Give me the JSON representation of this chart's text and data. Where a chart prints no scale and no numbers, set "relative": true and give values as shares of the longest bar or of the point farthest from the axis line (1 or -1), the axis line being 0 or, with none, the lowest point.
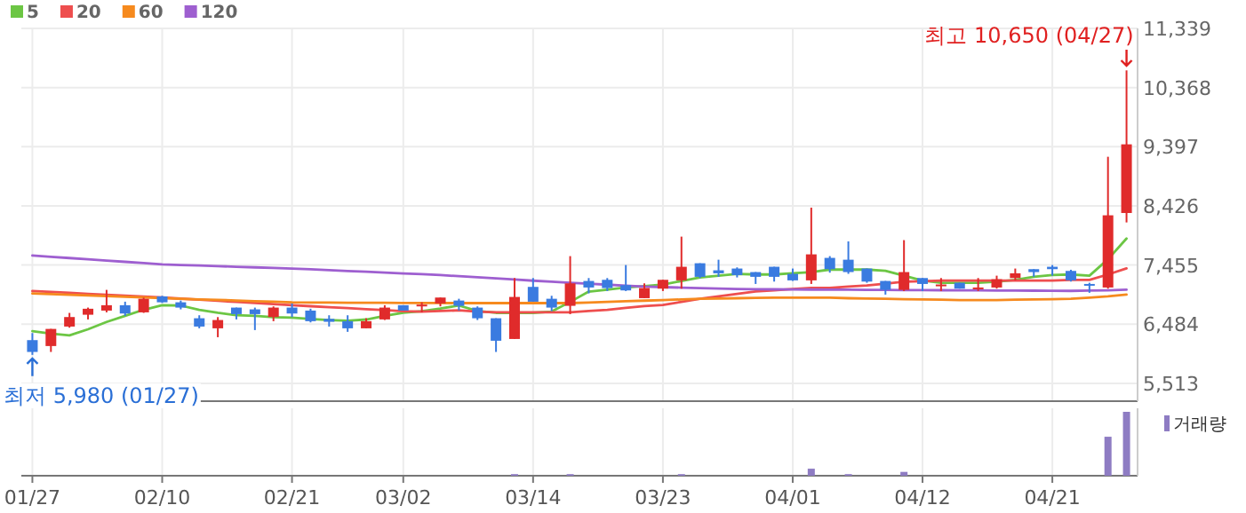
{
  "chart_data": [
    {
      "type": "candlestick",
      "categories": [
        "01/27",
        null,
        null,
        null,
        null,
        null,
        null,
        "02/10",
        null,
        null,
        null,
        null,
        null,
        null,
        "02/21",
        null,
        null,
        null,
        null,
        null,
        "03/02",
        null,
        null,
        null,
        null,
        null,
        null,
        "03/14",
        null,
        null,
        null,
        null,
        null,
        null,
        "03/23",
        null,
        null,
        null,
        null,
        null,
        null,
        "04/01",
        null,
        null,
        null,
        null,
        null,
        null,
        "04/12",
        null,
        null,
        null,
        null,
        null,
        null,
        "04/21",
        null,
        null,
        null,
        null
      ],
      "ohlc": [
        [
          6222,
          6338,
          5980,
          6028
        ],
        [
          6125,
          6406,
          6028,
          6406
        ],
        [
          6445,
          6669,
          6426,
          6601
        ],
        [
          6639,
          6756,
          6562,
          6737
        ],
        [
          6707,
          7047,
          6678,
          6795
        ],
        [
          6795,
          6853,
          6620,
          6659
        ],
        [
          6678,
          6921,
          6669,
          6901
        ],
        [
          6940,
          6950,
          6833,
          6843
        ],
        [
          6843,
          6872,
          6727,
          6756
        ],
        [
          6581,
          6630,
          6416,
          6445
        ],
        [
          6416,
          6600,
          6270,
          6552
        ],
        [
          6756,
          6756,
          6562,
          6649
        ],
        [
          6727,
          6756,
          6387,
          6649
        ],
        [
          6601,
          6776,
          6533,
          6756
        ],
        [
          6756,
          6824,
          6601,
          6659
        ],
        [
          6707,
          6737,
          6513,
          6533
        ],
        [
          6571,
          6630,
          6445,
          6523
        ],
        [
          6533,
          6630,
          6358,
          6416
        ],
        [
          6416,
          6581,
          6416,
          6533
        ],
        [
          6562,
          6795,
          6552,
          6756
        ],
        [
          6795,
          6795,
          6707,
          6707
        ],
        [
          6776,
          6843,
          6678,
          6805
        ],
        [
          6824,
          6921,
          6776,
          6921
        ],
        [
          6872,
          6901,
          6707,
          6785
        ],
        [
          6756,
          6776,
          6552,
          6581
        ],
        [
          6581,
          6581,
          6028,
          6212
        ],
        [
          6241,
          7241,
          6241,
          6931
        ],
        [
          7096,
          7241,
          6853,
          6853
        ],
        [
          6901,
          6950,
          6698,
          6756
        ],
        [
          6785,
          7601,
          6649,
          7154
        ],
        [
          7193,
          7241,
          6989,
          7086
        ],
        [
          7212,
          7241,
          7028,
          7077
        ],
        [
          7125,
          7455,
          7028,
          7038
        ],
        [
          6911,
          7154,
          6911,
          7077
        ],
        [
          7067,
          7212,
          7028,
          7212
        ],
        [
          7203,
          7921,
          7067,
          7426
        ],
        [
          7484,
          7484,
          7241,
          7261
        ],
        [
          7368,
          7542,
          7261,
          7319
        ],
        [
          7397,
          7416,
          7251,
          7290
        ],
        [
          7339,
          7339,
          7144,
          7261
        ],
        [
          7426,
          7426,
          7183,
          7261
        ],
        [
          7310,
          7397,
          7193,
          7203
        ],
        [
          7203,
          8397,
          7144,
          7630
        ],
        [
          7572,
          7601,
          7329,
          7387
        ],
        [
          7542,
          7843,
          7310,
          7339
        ],
        [
          7397,
          7397,
          7164,
          7183
        ],
        [
          7193,
          7193,
          6969,
          7047
        ],
        [
          7047,
          7863,
          7028,
          7339
        ],
        [
          7241,
          7241,
          7028,
          7144
        ],
        [
          7106,
          7241,
          7028,
          7135
        ],
        [
          7164,
          7164,
          7067,
          7067
        ],
        [
          7057,
          7241,
          7028,
          7086
        ],
        [
          7086,
          7280,
          7067,
          7222
        ],
        [
          7241,
          7397,
          7203,
          7319
        ],
        [
          7387,
          7387,
          7261,
          7339
        ],
        [
          7426,
          7455,
          7280,
          7387
        ],
        [
          7358,
          7377,
          7183,
          7203
        ],
        [
          7144,
          7164,
          6999,
          7125
        ],
        [
          7086,
          9232,
          7067,
          8271
        ],
        [
          8309,
          10650,
          8154,
          9436
        ]
      ],
      "colors": [
        "#3a7be0",
        "#e02b2b",
        "#e02b2b",
        "#e02b2b",
        "#e02b2b",
        "#3a7be0",
        "#e02b2b",
        "#3a7be0",
        "#3a7be0",
        "#3a7be0",
        "#e02b2b",
        "#3a7be0",
        "#3a7be0",
        "#e02b2b",
        "#3a7be0",
        "#3a7be0",
        "#3a7be0",
        "#3a7be0",
        "#e02b2b",
        "#e02b2b",
        "#3a7be0",
        "#e02b2b",
        "#e02b2b",
        "#3a7be0",
        "#3a7be0",
        "#3a7be0",
        "#e02b2b",
        "#3a7be0",
        "#3a7be0",
        "#e02b2b",
        "#3a7be0",
        "#3a7be0",
        "#3a7be0",
        "#e02b2b",
        "#e02b2b",
        "#e02b2b",
        "#3a7be0",
        "#3a7be0",
        "#3a7be0",
        "#3a7be0",
        "#3a7be0",
        "#3a7be0",
        "#e02b2b",
        "#3a7be0",
        "#3a7be0",
        "#3a7be0",
        "#3a7be0",
        "#e02b2b",
        "#3a7be0",
        "#e02b2b",
        "#3a7be0",
        "#e02b2b",
        "#e02b2b",
        "#e02b2b",
        "#3a7be0",
        "#3a7be0",
        "#3a7be0",
        "#3a7be0",
        "#e02b2b",
        "#e02b2b"
      ],
      "series": [
        {
          "name": "5",
          "type": "line",
          "color": "#6cc644",
          "values": [
            6368,
            6330,
            6300,
            6400,
            6520,
            6620,
            6720,
            6795,
            6790,
            6720,
            6670,
            6630,
            6620,
            6600,
            6590,
            6570,
            6552,
            6540,
            6560,
            6620,
            6670,
            6698,
            6740,
            6790,
            6700,
            6670,
            6670,
            6670,
            6690,
            6850,
            7018,
            7050,
            7086,
            7110,
            7135,
            7193,
            7250,
            7280,
            7310,
            7300,
            7300,
            7320,
            7339,
            7380,
            7380,
            7380,
            7360,
            7280,
            7200,
            7164,
            7164,
            7164,
            7180,
            7210,
            7260,
            7290,
            7300,
            7280,
            7550,
            7890
          ]
        },
        {
          "name": "20",
          "type": "line",
          "color": "#ee4e4e",
          "values": [
            7028,
            7013,
            6998,
            6982,
            6967,
            6952,
            6936,
            6921,
            6903,
            6885,
            6867,
            6849,
            6831,
            6813,
            6795,
            6779,
            6763,
            6747,
            6730,
            6714,
            6698,
            6690,
            6700,
            6710,
            6690,
            6680,
            6680,
            6680,
            6680,
            6680,
            6700,
            6720,
            6750,
            6780,
            6800,
            6850,
            6900,
            6940,
            6980,
            7020,
            7040,
            7060,
            7080,
            7080,
            7100,
            7120,
            7150,
            7180,
            7190,
            7200,
            7200,
            7200,
            7200,
            7200,
            7200,
            7200,
            7210,
            7210,
            7300,
            7400
          ]
        },
        {
          "name": "60",
          "type": "line",
          "color": "#f68a1e",
          "values": [
            6989,
            6978,
            6967,
            6956,
            6944,
            6933,
            6922,
            6911,
            6901,
            6891,
            6882,
            6872,
            6862,
            6853,
            6843,
            6840,
            6838,
            6836,
            6835,
            6834,
            6833,
            6832,
            6831,
            6830,
            6830,
            6830,
            6830,
            6830,
            6830,
            6830,
            6840,
            6850,
            6860,
            6870,
            6880,
            6890,
            6900,
            6905,
            6910,
            6915,
            6920,
            6920,
            6920,
            6920,
            6910,
            6905,
            6900,
            6895,
            6890,
            6885,
            6880,
            6880,
            6880,
            6885,
            6890,
            6895,
            6900,
            6920,
            6940,
            6970
          ]
        },
        {
          "name": "120",
          "type": "line",
          "color": "#9e5fd0",
          "values": [
            7610,
            7589,
            7569,
            7548,
            7527,
            7507,
            7486,
            7465,
            7455,
            7446,
            7436,
            7426,
            7416,
            7407,
            7397,
            7384,
            7370,
            7357,
            7344,
            7330,
            7317,
            7304,
            7290,
            7272,
            7253,
            7235,
            7217,
            7198,
            7180,
            7164,
            7148,
            7132,
            7116,
            7100,
            7092,
            7084,
            7076,
            7068,
            7060,
            7058,
            7056,
            7054,
            7052,
            7050,
            7049,
            7047,
            7046,
            7044,
            7043,
            7041,
            7040,
            7038,
            7037,
            7035,
            7034,
            7032,
            7030,
            7035,
            7040,
            7050
          ]
        }
      ],
      "ylim": [
        5220,
        11339
      ],
      "yticks": [
        {
          "value": 5513,
          "label": "5,513"
        },
        {
          "value": 6484,
          "label": "6,484"
        },
        {
          "value": 7455,
          "label": "7,455"
        },
        {
          "value": 8426,
          "label": "8,426"
        },
        {
          "value": 9397,
          "label": "9,397"
        },
        {
          "value": 10368,
          "label": "10,368"
        },
        {
          "value": 11339,
          "label": "11,339"
        }
      ],
      "grid": true,
      "legend": "top left",
      "tick_labels": "y",
      "annotations": [
        {
          "text": "최저 5,980 (01/27)",
          "x": "01/27",
          "y": 5980
        },
        "최고 10,650 (04/27)"
      ]
    },
    {
      "type": "bar",
      "relative": true,
      "categories": [
        "01/27",
        null,
        null,
        null,
        null,
        null,
        null,
        "02/10",
        null,
        null,
        null,
        null,
        null,
        null,
        "02/21",
        null,
        null,
        null,
        null,
        null,
        "03/02",
        null,
        null,
        null,
        null,
        null,
        null,
        "03/14",
        null,
        null,
        null,
        null,
        null,
        null,
        "03/23",
        null,
        null,
        null,
        null,
        null,
        null,
        "04/01",
        null,
        null,
        null,
        null,
        null,
        null,
        "04/12",
        null,
        null,
        null,
        null,
        null,
        null,
        "04/21",
        null,
        null,
        null,
        null
      ],
      "series": [
        {
          "name": "거래량",
          "color": "#8e7cc3",
          "values": [
            null,
            null,
            null,
            null,
            null,
            null,
            null,
            null,
            null,
            null,
            null,
            null,
            null,
            null,
            null,
            null,
            null,
            null,
            null,
            null,
            null,
            null,
            null,
            null,
            null,
            null,
            0.025,
            null,
            null,
            0.025,
            null,
            null,
            null,
            null,
            null,
            0.025,
            null,
            null,
            null,
            null,
            null,
            null,
            0.11,
            null,
            0.025,
            null,
            null,
            0.06,
            null,
            null,
            null,
            null,
            null,
            null,
            null,
            null,
            null,
            null,
            0.61,
            1
          ]
        }
      ],
      "grid": "x",
      "legend": "top right",
      "tick_labels": "x"
    }
  ]
}
